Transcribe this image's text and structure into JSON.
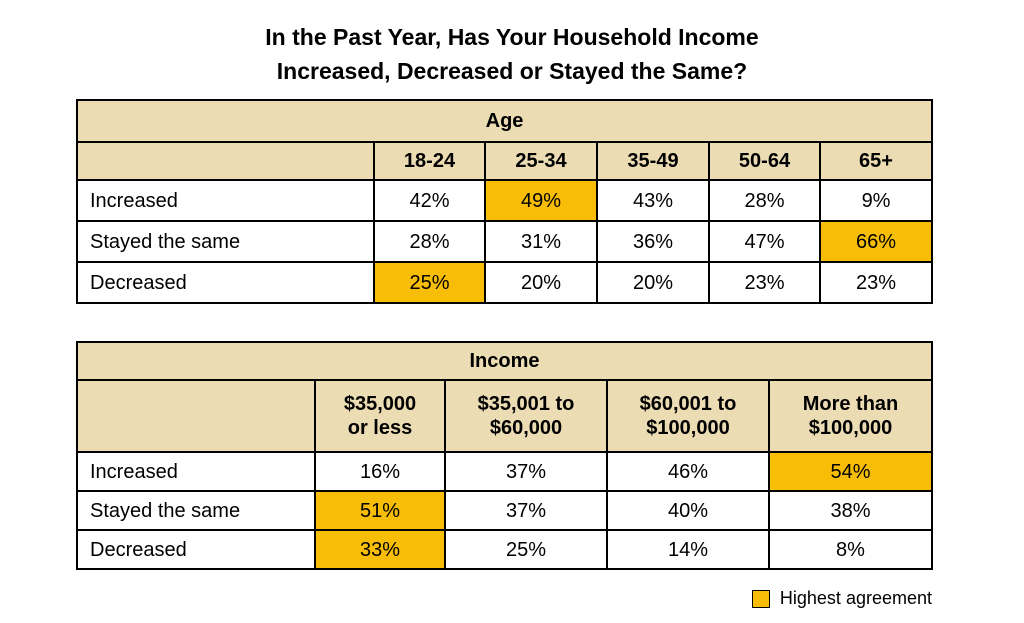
{
  "chart_data": {
    "type": "table",
    "title_line1": "In the Past Year, Has Your Household Income",
    "title_line2": "Increased, Decreased or Stayed the Same?",
    "highlight_color": "#f7bd07",
    "header_color": "#ebdcb4",
    "tables": [
      {
        "group": "Age",
        "columns": [
          "18-24",
          "25-34",
          "35-49",
          "50-64",
          "65+"
        ],
        "rows": [
          {
            "label": "Increased",
            "values": [
              "42%",
              "49%",
              "43%",
              "28%",
              "9%"
            ],
            "highlight": [
              false,
              true,
              false,
              false,
              false
            ]
          },
          {
            "label": "Stayed the same",
            "values": [
              "28%",
              "31%",
              "36%",
              "47%",
              "66%"
            ],
            "highlight": [
              false,
              false,
              false,
              false,
              true
            ]
          },
          {
            "label": "Decreased",
            "values": [
              "25%",
              "20%",
              "20%",
              "23%",
              "23%"
            ],
            "highlight": [
              true,
              false,
              false,
              false,
              false
            ]
          }
        ]
      },
      {
        "group": "Income",
        "columns": [
          [
            "$35,000",
            "or less"
          ],
          [
            "$35,001 to",
            "$60,000"
          ],
          [
            "$60,001 to",
            "$100,000"
          ],
          [
            "More than",
            "$100,000"
          ]
        ],
        "rows": [
          {
            "label": "Increased",
            "values": [
              "16%",
              "37%",
              "46%",
              "54%"
            ],
            "highlight": [
              false,
              false,
              false,
              true
            ]
          },
          {
            "label": "Stayed the same",
            "values": [
              "51%",
              "37%",
              "40%",
              "38%"
            ],
            "highlight": [
              true,
              false,
              false,
              false
            ]
          },
          {
            "label": "Decreased",
            "values": [
              "33%",
              "25%",
              "14%",
              "8%"
            ],
            "highlight": [
              true,
              false,
              false,
              false
            ]
          }
        ]
      }
    ],
    "legend": {
      "label": "Highest agreement"
    }
  }
}
